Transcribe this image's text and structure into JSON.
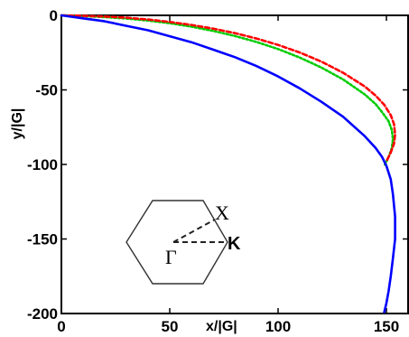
{
  "chart_data": {
    "type": "line",
    "xlabel": "x/|G|",
    "ylabel": "y/|G|",
    "xlim": [
      0,
      160
    ],
    "ylim": [
      -200,
      0
    ],
    "x_ticks": [
      0,
      50,
      100,
      150
    ],
    "y_ticks": [
      0,
      -50,
      -100,
      -150,
      -200
    ],
    "grid": false,
    "legend": "none",
    "series": [
      {
        "color": "#0000ff",
        "style": "solid",
        "x": [
          0,
          10,
          20,
          30,
          40,
          50,
          60,
          70,
          80,
          90,
          100,
          110,
          120,
          130,
          140,
          145,
          148,
          150,
          152,
          153,
          154,
          154,
          153,
          152,
          151,
          150,
          149
        ],
        "y": [
          0,
          -2,
          -4,
          -7,
          -10,
          -14,
          -18,
          -23,
          -28,
          -34,
          -41,
          -49,
          -58,
          -68,
          -81,
          -89,
          -95,
          -101,
          -110,
          -120,
          -135,
          -150,
          -163,
          -175,
          -185,
          -193,
          -199
        ]
      },
      {
        "color": "#ff0000",
        "style": "dashed",
        "x": [
          0,
          10,
          20,
          30,
          40,
          50,
          60,
          70,
          80,
          90,
          100,
          110,
          120,
          130,
          140,
          145,
          149,
          152,
          153.5,
          154,
          153.5,
          152,
          150
        ],
        "y": [
          0,
          -0.3,
          -0.8,
          -1.6,
          -2.8,
          -4.4,
          -6.4,
          -8.9,
          -11.9,
          -15.5,
          -19.8,
          -24.9,
          -31,
          -38.5,
          -47.7,
          -53.8,
          -60,
          -67,
          -73,
          -80,
          -86,
          -92,
          -98
        ]
      },
      {
        "color": "#00cc00",
        "style": "dotted",
        "x": [
          0,
          10,
          20,
          30,
          40,
          50,
          60,
          70,
          80,
          90,
          100,
          110,
          120,
          130,
          140,
          145,
          148,
          151,
          152.5,
          153,
          152.5,
          151,
          149
        ],
        "y": [
          0,
          -0.5,
          -1.2,
          -2.1,
          -3.5,
          -5.3,
          -7.6,
          -10.4,
          -13.8,
          -17.8,
          -22.6,
          -28.3,
          -35,
          -43,
          -53,
          -59.5,
          -65,
          -71,
          -77,
          -83,
          -89,
          -95,
          -101
        ]
      }
    ],
    "inset": {
      "labels": {
        "gamma": "Γ",
        "x_point": "X",
        "k_point": "K"
      }
    }
  }
}
